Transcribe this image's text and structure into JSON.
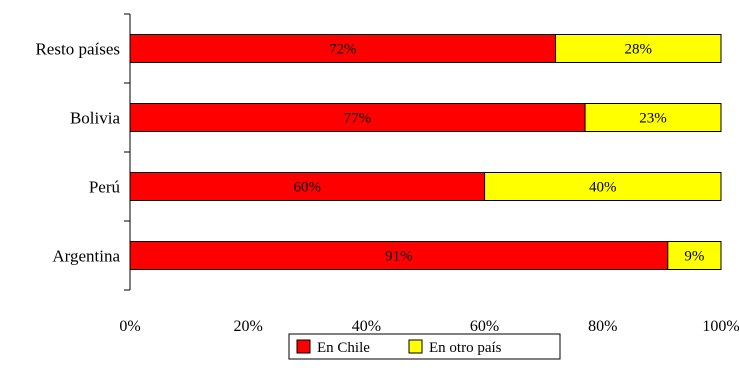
{
  "chart_data": {
    "type": "bar",
    "orientation": "horizontal",
    "stacked": "percent",
    "title": "",
    "xlabel": "",
    "ylabel": "",
    "xlim": [
      0,
      100
    ],
    "x_ticks": [
      "0%",
      "20%",
      "40%",
      "60%",
      "80%",
      "100%"
    ],
    "categories": [
      "Resto países",
      "Bolivia",
      "Perú",
      "Argentina"
    ],
    "series": [
      {
        "name": "En Chile",
        "color": "#ff0000",
        "values": [
          72,
          77,
          60,
          91
        ],
        "labels": [
          "72%",
          "77%",
          "60%",
          "91%"
        ]
      },
      {
        "name": "En otro país",
        "color": "#ffff00",
        "values": [
          28,
          23,
          40,
          9
        ],
        "labels": [
          "28%",
          "23%",
          "40%",
          "9%"
        ]
      }
    ],
    "grid": false,
    "legend_position": "bottom"
  }
}
